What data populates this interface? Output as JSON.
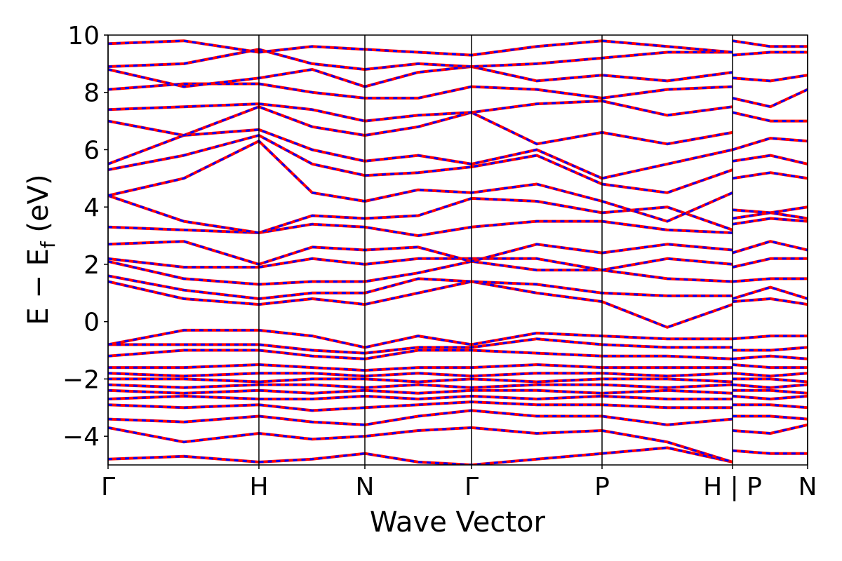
{
  "chart_data": {
    "type": "line",
    "x_label": "Wave Vector",
    "y_label_parts": [
      "E − E",
      "f",
      " (eV)"
    ],
    "color": "#ff0000",
    "dash_color": "#0000ff",
    "xlim": [
      0,
      9.97
    ],
    "ylim": [
      -5,
      10
    ],
    "xticks": [
      {
        "value": 0,
        "label": "Γ"
      },
      {
        "value": 2.15,
        "label": "H"
      },
      {
        "value": 3.66,
        "label": "N"
      },
      {
        "value": 5.18,
        "label": "Γ"
      },
      {
        "value": 7.04,
        "label": "P"
      },
      {
        "value": 8.9,
        "label": "H | P"
      },
      {
        "value": 9.97,
        "label": "N"
      }
    ],
    "yticks": [
      {
        "value": -4,
        "label": "−4"
      },
      {
        "value": -2,
        "label": "−2"
      },
      0,
      2,
      4,
      6,
      8,
      10
    ],
    "x": [
      0,
      1.08,
      2.15,
      2.91,
      3.66,
      4.42,
      5.18,
      6.11,
      7.04,
      7.97,
      8.9,
      8.9,
      8.9,
      9.44,
      9.97
    ],
    "series": [
      {
        "values": [
          -4.8,
          -4.7,
          -4.9,
          -4.8,
          -4.6,
          -4.9,
          -5,
          -4.8,
          -4.6,
          -4.4,
          -4.9,
          null,
          -4.5,
          -4.6,
          -4.6
        ]
      },
      {
        "values": [
          -3.7,
          -4.2,
          -3.9,
          -4.1,
          -4.0,
          -3.8,
          -3.7,
          -3.9,
          -3.8,
          -4.2,
          -4.9,
          null,
          -3.8,
          -3.9,
          -3.6
        ]
      },
      {
        "values": [
          -3.4,
          -3.5,
          -3.3,
          -3.5,
          -3.6,
          -3.3,
          -3.1,
          -3.3,
          -3.3,
          -3.6,
          -3.4,
          null,
          -3.3,
          -3.3,
          -3.4
        ]
      },
      {
        "values": [
          -2.9,
          -3.0,
          -2.9,
          -3.1,
          -3.0,
          -2.9,
          -2.8,
          -2.9,
          -2.9,
          -3.0,
          -3.0,
          null,
          -2.9,
          -2.9,
          -3.0
        ]
      },
      {
        "values": [
          -2.7,
          -2.6,
          -2.7,
          -2.7,
          -2.6,
          -2.7,
          -2.6,
          -2.7,
          -2.6,
          -2.7,
          -2.7,
          null,
          -2.6,
          -2.7,
          -2.6
        ]
      },
      {
        "values": [
          -2.4,
          -2.5,
          -2.4,
          -2.5,
          -2.4,
          -2.5,
          -2.4,
          -2.4,
          -2.5,
          -2.4,
          -2.5,
          null,
          -2.4,
          -2.4,
          -2.5
        ]
      },
      {
        "values": [
          -2.2,
          -2.3,
          -2.2,
          -2.2,
          -2.3,
          -2.2,
          -2.3,
          -2.2,
          -2.2,
          -2.3,
          -2.2,
          null,
          -2.2,
          -2.3,
          -2.2
        ]
      },
      {
        "values": [
          -2.0,
          -2.0,
          -2.1,
          -2.0,
          -2.0,
          -2.1,
          -2.0,
          -2.1,
          -2.0,
          -2.0,
          -2.1,
          null,
          -2.0,
          -2.0,
          -2.1
        ]
      },
      {
        "values": [
          -1.8,
          -1.9,
          -1.8,
          -1.8,
          -1.9,
          -1.8,
          -1.9,
          -1.8,
          -1.8,
          -1.9,
          -1.8,
          null,
          -1.8,
          -1.9,
          -1.8
        ]
      },
      {
        "values": [
          -1.6,
          -1.6,
          -1.5,
          -1.6,
          -1.7,
          -1.6,
          -1.6,
          -1.5,
          -1.6,
          -1.6,
          -1.6,
          null,
          -1.5,
          -1.6,
          -1.6
        ]
      },
      {
        "values": [
          -1.2,
          -1.0,
          -1.0,
          -1.2,
          -1.3,
          -1.0,
          -1.0,
          -1.1,
          -1.2,
          -1.2,
          -1.3,
          null,
          -1.3,
          -1.2,
          -1.3
        ]
      },
      {
        "values": [
          -0.8,
          -0.8,
          -0.8,
          -1.0,
          -1.1,
          -0.9,
          -0.9,
          -0.6,
          -0.8,
          -0.9,
          -0.9,
          null,
          -1.0,
          -1.0,
          -0.9
        ]
      },
      {
        "values": [
          -0.8,
          -0.3,
          -0.3,
          -0.5,
          -0.9,
          -0.5,
          -0.8,
          -0.4,
          -0.5,
          -0.6,
          -0.6,
          null,
          -0.6,
          -0.5,
          -0.5
        ]
      },
      {
        "values": [
          1.4,
          0.8,
          0.6,
          0.8,
          0.6,
          1.0,
          1.4,
          1.0,
          0.7,
          -0.2,
          0.6,
          null,
          0.7,
          0.8,
          0.6
        ]
      },
      {
        "values": [
          1.6,
          1.1,
          0.8,
          1.0,
          1.0,
          1.5,
          1.4,
          1.3,
          1.0,
          0.9,
          0.9,
          null,
          0.8,
          1.2,
          0.8
        ]
      },
      {
        "values": [
          2.1,
          1.5,
          1.3,
          1.4,
          1.4,
          1.7,
          2.1,
          1.8,
          1.8,
          1.5,
          1.4,
          null,
          1.4,
          1.5,
          1.5
        ]
      },
      {
        "values": [
          2.2,
          1.9,
          1.9,
          2.2,
          2.0,
          2.2,
          2.2,
          2.2,
          1.8,
          2.2,
          2.0,
          null,
          1.9,
          2.2,
          2.2
        ]
      },
      {
        "values": [
          2.7,
          2.8,
          2.0,
          2.6,
          2.5,
          2.6,
          2.1,
          2.7,
          2.4,
          2.7,
          2.5,
          null,
          2.4,
          2.8,
          2.5
        ]
      },
      {
        "values": [
          3.3,
          3.2,
          3.1,
          3.4,
          3.3,
          3.0,
          3.3,
          3.5,
          3.5,
          3.2,
          3.1,
          null,
          3.4,
          3.6,
          3.5
        ]
      },
      {
        "values": [
          4.4,
          3.5,
          3.1,
          3.7,
          3.6,
          3.7,
          4.3,
          4.2,
          3.8,
          4.0,
          3.2,
          null,
          3.6,
          3.8,
          3.6
        ]
      },
      {
        "values": [
          4.4,
          5.0,
          6.3,
          4.5,
          4.2,
          4.6,
          4.5,
          4.8,
          4.2,
          3.5,
          4.5,
          null,
          3.9,
          3.8,
          4.0
        ]
      },
      {
        "values": [
          5.3,
          5.8,
          6.5,
          5.5,
          5.1,
          5.2,
          5.4,
          5.8,
          4.8,
          4.5,
          5.3,
          null,
          5.0,
          5.2,
          5.0
        ]
      },
      {
        "values": [
          5.5,
          6.5,
          6.7,
          6.0,
          5.6,
          5.8,
          5.5,
          6.0,
          5.0,
          5.5,
          6.0,
          null,
          5.6,
          5.8,
          5.5
        ]
      },
      {
        "values": [
          7.0,
          6.5,
          7.5,
          6.8,
          6.5,
          6.8,
          7.3,
          6.2,
          6.6,
          6.2,
          6.6,
          null,
          6.0,
          6.4,
          6.3
        ]
      },
      {
        "values": [
          7.4,
          7.5,
          7.6,
          7.4,
          7.0,
          7.2,
          7.3,
          7.6,
          7.7,
          7.2,
          7.5,
          null,
          7.3,
          7.0,
          7.0
        ]
      },
      {
        "values": [
          8.1,
          8.3,
          8.3,
          8.0,
          7.8,
          7.8,
          8.2,
          8.1,
          7.8,
          8.1,
          8.2,
          null,
          7.8,
          7.5,
          8.1
        ]
      },
      {
        "values": [
          8.8,
          8.2,
          8.5,
          8.8,
          8.2,
          8.7,
          8.9,
          8.4,
          8.6,
          8.4,
          8.7,
          null,
          8.5,
          8.4,
          8.6
        ]
      },
      {
        "values": [
          8.9,
          9.0,
          9.5,
          9.0,
          8.8,
          9.0,
          8.9,
          9.0,
          9.2,
          9.4,
          9.4,
          null,
          9.3,
          9.4,
          9.4
        ]
      },
      {
        "values": [
          9.7,
          9.8,
          9.4,
          9.6,
          9.5,
          9.4,
          9.3,
          9.6,
          9.8,
          9.6,
          9.4,
          null,
          9.8,
          9.6,
          9.6
        ]
      }
    ]
  }
}
